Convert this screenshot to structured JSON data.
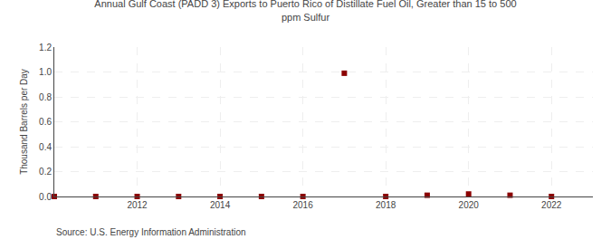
{
  "chart_data": {
    "type": "scatter",
    "title": "Annual Gulf Coast (PADD 3) Exports to Puerto Rico of Distillate Fuel Oil, Greater than 15 to 500\nppm Sulfur",
    "y_label": "Thousand Barrels per Day",
    "annotations": [
      "Source: U.S. Energy Information Administration"
    ],
    "x": [
      2010,
      2011,
      2012,
      2013,
      2014,
      2015,
      2016,
      2017,
      2018,
      2019,
      2020,
      2021,
      2022
    ],
    "values": [
      0.0,
      0.0,
      0.0,
      0.0,
      0.0,
      0.0,
      0.0,
      0.99,
      0.0,
      0.01,
      0.02,
      0.01,
      0.0
    ],
    "color": "#8b0000",
    "marker": "square",
    "xlim": [
      2010.0,
      2023.0
    ],
    "xticks": [
      2012,
      2014,
      2016,
      2018,
      2020,
      2022
    ],
    "ylim": [
      0.0,
      1.2
    ],
    "yticks": [
      {
        "value": 0.0,
        "label": "0.0"
      },
      0.2,
      0.4,
      0.6,
      0.8,
      {
        "value": 1.0,
        "label": "1.0"
      },
      1.2
    ],
    "grid": true
  }
}
